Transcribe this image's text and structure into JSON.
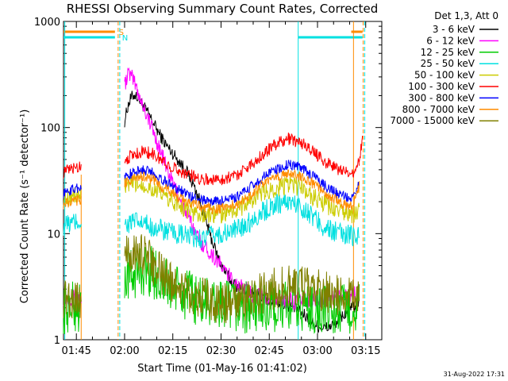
{
  "chart_data": {
    "type": "line",
    "title": "RHESSI Observing Summary Count Rates, Corrected",
    "ylabel": "Corrected Count Rate (s⁻¹ detector⁻¹)",
    "xlabel": "Start Time (01-May-16 01:41:02)",
    "yscale": "log",
    "ylim": [
      1,
      1000
    ],
    "xlim_minutes": [
      0,
      99
    ],
    "x_ticks": [
      {
        "m": 4,
        "label": "01:45"
      },
      {
        "m": 19,
        "label": "02:00"
      },
      {
        "m": 34,
        "label": "02:15"
      },
      {
        "m": 49,
        "label": "02:30"
      },
      {
        "m": 64,
        "label": "02:45"
      },
      {
        "m": 79,
        "label": "03:00"
      },
      {
        "m": 94,
        "label": "03:15"
      }
    ],
    "y_ticks": [
      {
        "v": 1,
        "label": "1"
      },
      {
        "v": 10,
        "label": "10"
      },
      {
        "v": 100,
        "label": "100"
      },
      {
        "v": 1000,
        "label": "1000"
      }
    ],
    "legend_title": "Det 1,3, Att 0",
    "legend_position": "right",
    "segments": [
      [
        0,
        5.5
      ],
      [
        19,
        92
      ],
      [
        92,
        93
      ]
    ],
    "series": [
      {
        "name": "3 - 6 keV",
        "color": "#000000",
        "points": [
          [
            19,
            115
          ],
          [
            20,
            160
          ],
          [
            21,
            190
          ],
          [
            22,
            205
          ],
          [
            23,
            195
          ],
          [
            24,
            175
          ],
          [
            26,
            140
          ],
          [
            28,
            110
          ],
          [
            30,
            85
          ],
          [
            32,
            68
          ],
          [
            34,
            57
          ],
          [
            36,
            48
          ],
          [
            38,
            40
          ],
          [
            40,
            31
          ],
          [
            42,
            22
          ],
          [
            44,
            14
          ],
          [
            46,
            9
          ],
          [
            48,
            6
          ],
          [
            50,
            4.5
          ],
          [
            52,
            3.6
          ],
          [
            54,
            3.2
          ],
          [
            56,
            3
          ],
          [
            58,
            2.8
          ],
          [
            60,
            2.7
          ],
          [
            62,
            2.5
          ],
          [
            64,
            2.4
          ],
          [
            66,
            2.3
          ],
          [
            68,
            2.2
          ],
          [
            70,
            2.1
          ],
          [
            72,
            2
          ],
          [
            74,
            1.8
          ],
          [
            76,
            1.6
          ],
          [
            78,
            1.4
          ],
          [
            80,
            1.3
          ],
          [
            82,
            1.3
          ],
          [
            84,
            1.4
          ],
          [
            86,
            1.6
          ],
          [
            88,
            1.8
          ],
          [
            90,
            2
          ],
          [
            92,
            2.2
          ]
        ]
      },
      {
        "name": "6 - 12 keV",
        "color": "#ff00ff",
        "points": [
          [
            0,
            2.5
          ],
          [
            5.5,
            2.5
          ],
          [
            19,
            250
          ],
          [
            20,
            320
          ],
          [
            21,
            305
          ],
          [
            22,
            270
          ],
          [
            23,
            225
          ],
          [
            24,
            185
          ],
          [
            26,
            130
          ],
          [
            28,
            90
          ],
          [
            30,
            62
          ],
          [
            32,
            42
          ],
          [
            34,
            30
          ],
          [
            36,
            22
          ],
          [
            38,
            16
          ],
          [
            40,
            12
          ],
          [
            42,
            9
          ],
          [
            44,
            7.5
          ],
          [
            46,
            6.5
          ],
          [
            48,
            5.5
          ],
          [
            50,
            4.5
          ],
          [
            52,
            3.8
          ],
          [
            54,
            3.3
          ],
          [
            56,
            3
          ],
          [
            58,
            2.8
          ],
          [
            60,
            2.6
          ],
          [
            64,
            2.5
          ],
          [
            68,
            2.4
          ],
          [
            72,
            2.3
          ],
          [
            76,
            2.4
          ],
          [
            80,
            2.4
          ],
          [
            84,
            2.5
          ],
          [
            88,
            2.6
          ],
          [
            92,
            2.8
          ]
        ]
      },
      {
        "name": "12 - 25 keV",
        "color": "#00cc00",
        "points": [
          [
            0,
            2
          ],
          [
            5.5,
            2
          ],
          [
            19,
            3.8
          ],
          [
            22,
            4.2
          ],
          [
            25,
            4.6
          ],
          [
            28,
            4.3
          ],
          [
            31,
            3.5
          ],
          [
            34,
            3
          ],
          [
            37,
            2.7
          ],
          [
            40,
            2.5
          ],
          [
            43,
            2.3
          ],
          [
            46,
            2.2
          ],
          [
            50,
            2.1
          ],
          [
            55,
            2
          ],
          [
            60,
            2
          ],
          [
            65,
            2
          ],
          [
            70,
            2
          ],
          [
            75,
            2
          ],
          [
            80,
            1.9
          ],
          [
            85,
            1.9
          ],
          [
            92,
            2
          ]
        ]
      },
      {
        "name": "25 - 50 keV",
        "color": "#00e0e0",
        "points": [
          [
            0,
            12
          ],
          [
            5.5,
            13
          ],
          [
            19,
            12
          ],
          [
            22,
            13
          ],
          [
            26,
            12
          ],
          [
            30,
            11
          ],
          [
            34,
            10
          ],
          [
            38,
            9.5
          ],
          [
            42,
            9
          ],
          [
            46,
            9.5
          ],
          [
            50,
            10
          ],
          [
            54,
            11
          ],
          [
            58,
            13
          ],
          [
            62,
            16
          ],
          [
            66,
            19
          ],
          [
            70,
            20
          ],
          [
            74,
            18
          ],
          [
            78,
            14
          ],
          [
            82,
            11
          ],
          [
            86,
            10
          ],
          [
            90,
            9.5
          ],
          [
            92,
            10
          ]
        ]
      },
      {
        "name": "50 - 100 keV",
        "color": "#cccc00",
        "points": [
          [
            0,
            22
          ],
          [
            5.5,
            23
          ],
          [
            19,
            28
          ],
          [
            22,
            30
          ],
          [
            25,
            29
          ],
          [
            28,
            26
          ],
          [
            31,
            23
          ],
          [
            34,
            20
          ],
          [
            37,
            18
          ],
          [
            40,
            16
          ],
          [
            43,
            15
          ],
          [
            46,
            15
          ],
          [
            50,
            15.5
          ],
          [
            54,
            17
          ],
          [
            58,
            20
          ],
          [
            62,
            24
          ],
          [
            66,
            27
          ],
          [
            70,
            29
          ],
          [
            74,
            27
          ],
          [
            78,
            22
          ],
          [
            82,
            18
          ],
          [
            86,
            16
          ],
          [
            90,
            15
          ],
          [
            92,
            16
          ]
        ]
      },
      {
        "name": "100 - 300 keV",
        "color": "#ff0000",
        "points": [
          [
            0,
            38
          ],
          [
            5.5,
            44
          ],
          [
            19,
            50
          ],
          [
            22,
            56
          ],
          [
            25,
            60
          ],
          [
            28,
            56
          ],
          [
            31,
            48
          ],
          [
            34,
            42
          ],
          [
            37,
            38
          ],
          [
            40,
            35
          ],
          [
            43,
            33
          ],
          [
            46,
            32
          ],
          [
            50,
            33
          ],
          [
            54,
            36
          ],
          [
            58,
            44
          ],
          [
            62,
            56
          ],
          [
            66,
            70
          ],
          [
            70,
            78
          ],
          [
            74,
            72
          ],
          [
            78,
            58
          ],
          [
            82,
            46
          ],
          [
            86,
            40
          ],
          [
            89,
            36
          ],
          [
            90,
            38
          ],
          [
            92,
            48
          ],
          [
            93,
            80
          ]
        ]
      },
      {
        "name": "300 - 800 keV",
        "color": "#0000ff",
        "points": [
          [
            0,
            24
          ],
          [
            5.5,
            28
          ],
          [
            19,
            34
          ],
          [
            22,
            38
          ],
          [
            25,
            40
          ],
          [
            28,
            37
          ],
          [
            31,
            32
          ],
          [
            34,
            28
          ],
          [
            37,
            25
          ],
          [
            40,
            22
          ],
          [
            43,
            21
          ],
          [
            46,
            20
          ],
          [
            50,
            20.5
          ],
          [
            54,
            22
          ],
          [
            58,
            27
          ],
          [
            62,
            34
          ],
          [
            66,
            40
          ],
          [
            70,
            45
          ],
          [
            74,
            42
          ],
          [
            78,
            34
          ],
          [
            82,
            27
          ],
          [
            86,
            23
          ],
          [
            89,
            21
          ],
          [
            90,
            22
          ],
          [
            92,
            30
          ]
        ]
      },
      {
        "name": "800 - 7000 keV",
        "color": "#ff8c00",
        "points": [
          [
            0,
            19
          ],
          [
            5.5,
            21
          ],
          [
            19,
            30
          ],
          [
            22,
            33
          ],
          [
            25,
            35
          ],
          [
            28,
            32
          ],
          [
            31,
            27
          ],
          [
            34,
            24
          ],
          [
            37,
            21
          ],
          [
            40,
            19
          ],
          [
            43,
            18
          ],
          [
            46,
            17
          ],
          [
            50,
            17.5
          ],
          [
            54,
            19
          ],
          [
            58,
            23
          ],
          [
            62,
            29
          ],
          [
            66,
            34
          ],
          [
            70,
            37
          ],
          [
            74,
            35
          ],
          [
            78,
            29
          ],
          [
            82,
            23
          ],
          [
            86,
            20
          ],
          [
            89,
            18
          ],
          [
            90,
            19
          ],
          [
            92,
            28
          ]
        ]
      },
      {
        "name": "7000 - 15000 keV",
        "color": "#808000",
        "points": [
          [
            0,
            2.5
          ],
          [
            5.5,
            2.5
          ],
          [
            19,
            6
          ],
          [
            22,
            6.5
          ],
          [
            25,
            6.5
          ],
          [
            28,
            5
          ],
          [
            31,
            4
          ],
          [
            34,
            3.5
          ],
          [
            37,
            3
          ],
          [
            40,
            2.7
          ],
          [
            43,
            2.5
          ],
          [
            46,
            2.3
          ],
          [
            50,
            2.2
          ],
          [
            55,
            2.2
          ],
          [
            60,
            2.6
          ],
          [
            65,
            3
          ],
          [
            70,
            3.3
          ],
          [
            75,
            3.1
          ],
          [
            80,
            2.9
          ],
          [
            85,
            2.7
          ],
          [
            90,
            2.6
          ],
          [
            92,
            2.6
          ]
        ]
      }
    ],
    "flags": [
      {
        "label": "S",
        "color": "#ff8c00"
      },
      {
        "label": "N",
        "color": "#00e0e0"
      }
    ]
  },
  "footer": {
    "timestamp": "31-Aug-2022 17:31"
  }
}
